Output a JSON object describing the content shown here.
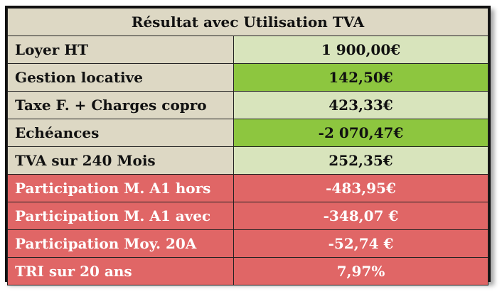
{
  "table": {
    "title": "Résultat avec Utilisation TVA",
    "rows": [
      {
        "label": "Loyer HT",
        "value": "1 900,00€"
      },
      {
        "label": "Gestion locative",
        "value": "142,50€"
      },
      {
        "label": "Taxe F. + Charges copro",
        "value": "423,33€"
      },
      {
        "label": "Echéances",
        "value": "-2 070,47€"
      },
      {
        "label": "TVA sur 240 Mois",
        "value": "252,35€"
      },
      {
        "label": "Participation M. A1 hors",
        "value": "-483,95€"
      },
      {
        "label": "Participation M. A1 avec",
        "value": "-348,07 €"
      },
      {
        "label": "Participation Moy. 20A",
        "value": "-52,74 €"
      },
      {
        "label": "TRI sur 20 ans",
        "value": "7,97%"
      }
    ]
  },
  "colors": {
    "header_bg": "#ddd8c4",
    "light_green": "#d8e4bc",
    "bright_green": "#8dc63f",
    "red": "#e06666"
  }
}
